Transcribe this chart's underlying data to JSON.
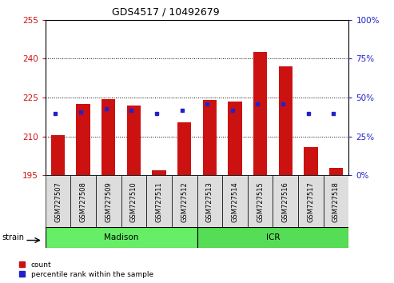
{
  "title": "GDS4517 / 10492679",
  "samples": [
    "GSM727507",
    "GSM727508",
    "GSM727509",
    "GSM727510",
    "GSM727511",
    "GSM727512",
    "GSM727513",
    "GSM727514",
    "GSM727515",
    "GSM727516",
    "GSM727517",
    "GSM727518"
  ],
  "counts": [
    210.5,
    222.5,
    224.5,
    222.0,
    197.0,
    215.5,
    224.0,
    223.5,
    242.5,
    237.0,
    206.0,
    198.0
  ],
  "percentiles": [
    40,
    41,
    43,
    42,
    40,
    42,
    46,
    42,
    46,
    46,
    40,
    40
  ],
  "ylim_left": [
    195,
    255
  ],
  "ylim_right": [
    0,
    100
  ],
  "yticks_left": [
    195,
    210,
    225,
    240,
    255
  ],
  "yticks_right": [
    0,
    25,
    50,
    75,
    100
  ],
  "bar_color": "#cc1111",
  "dot_color": "#2222cc",
  "bar_bottom": 195,
  "bar_width": 0.55,
  "strain_groups": [
    {
      "label": "Madison",
      "start": 0,
      "end": 6,
      "color": "#66ee66"
    },
    {
      "label": "ICR",
      "start": 6,
      "end": 12,
      "color": "#55dd55"
    }
  ],
  "strain_label": "strain",
  "legend_count_label": "count",
  "legend_pct_label": "percentile rank within the sample",
  "tick_color_left": "#cc1111",
  "tick_color_right": "#2222cc",
  "label_fontsize": 6,
  "strain_fontsize": 7.5,
  "title_fontsize": 9
}
